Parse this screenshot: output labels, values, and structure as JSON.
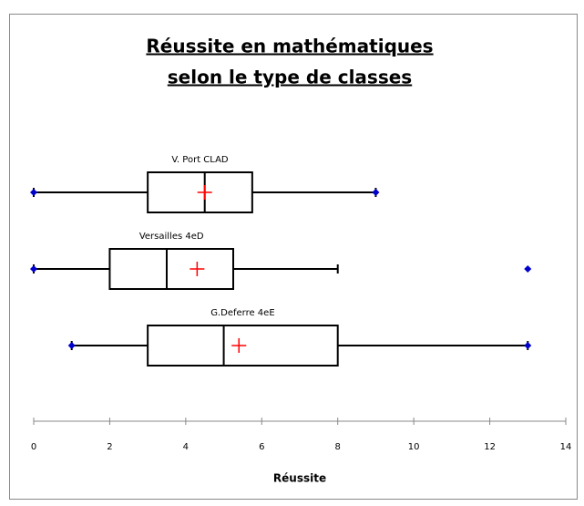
{
  "chart_data": {
    "type": "boxplot",
    "title_lines": [
      "Réussite en mathématiques",
      "selon le type de classes"
    ],
    "xlabel": "Réussite",
    "xlim": [
      0,
      14
    ],
    "xticks": [
      0,
      2,
      4,
      6,
      8,
      10,
      12,
      14
    ],
    "box_color": "#000000",
    "mean_color": "#ff0000",
    "point_color": "#0000cc",
    "series": [
      {
        "name": "V. Port CLAD",
        "whisker_low": 0,
        "q1": 3,
        "median": 4.5,
        "q3": 5.75,
        "whisker_high": 9,
        "mean": 4.5,
        "points": [
          0,
          9
        ]
      },
      {
        "name": "Versailles 4eD",
        "whisker_low": 0,
        "q1": 2,
        "median": 3.5,
        "q3": 5.25,
        "whisker_high": 8,
        "mean": 4.3,
        "points": [
          0,
          13
        ]
      },
      {
        "name": "G.Deferre 4eE",
        "whisker_low": 1,
        "q1": 3,
        "median": 5,
        "q3": 8,
        "whisker_high": 13,
        "mean": 5.4,
        "points": [
          1,
          13
        ]
      }
    ]
  }
}
